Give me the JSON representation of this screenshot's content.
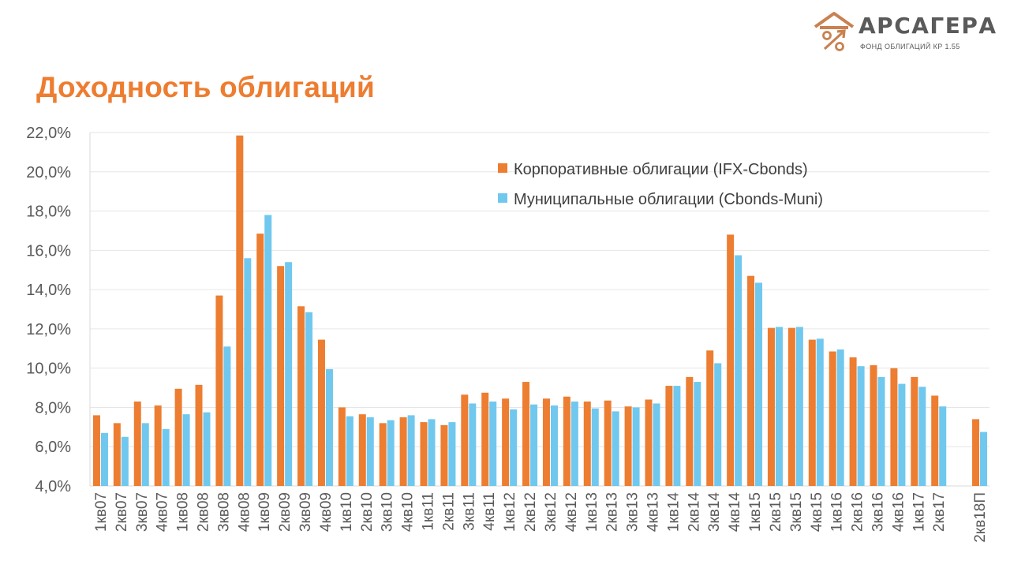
{
  "page": {
    "title": "Доходность облигаций"
  },
  "logo": {
    "name": "АРСАГЕРА",
    "subtitle": "ФОНД ОБЛИГАЦИЙ КР 1.55",
    "icon": "house-percent-logo-icon"
  },
  "colors": {
    "accent": "#ed7d31",
    "corporate": "#ed7d31",
    "municipal": "#70c8ee",
    "text": "#595959",
    "grid": "#e6e6e6"
  },
  "chart_data": {
    "type": "bar",
    "title": "",
    "xlabel": "",
    "ylabel": "",
    "ylim": [
      4,
      22
    ],
    "yticks": [
      4,
      6,
      8,
      10,
      12,
      14,
      16,
      18,
      20,
      22
    ],
    "ytick_labels": [
      "4,0%",
      "6,0%",
      "8,0%",
      "10,0%",
      "12,0%",
      "14,0%",
      "16,0%",
      "18,0%",
      "20,0%",
      "22,0%"
    ],
    "grid": true,
    "legend_position": "top-right",
    "categories": [
      "1кв07",
      "2кв07",
      "3кв07",
      "4кв07",
      "1кв08",
      "2кв08",
      "3кв08",
      "4кв08",
      "1кв09",
      "2кв09",
      "3кв09",
      "4кв09",
      "1кв10",
      "2кв10",
      "3кв10",
      "4кв10",
      "1кв11",
      "2кв11",
      "3кв11",
      "4кв11",
      "1кв12",
      "2кв12",
      "3кв12",
      "4кв12",
      "1кв13",
      "2кв13",
      "3кв13",
      "4кв13",
      "1кв14",
      "2кв14",
      "3кв14",
      "4кв14",
      "1кв15",
      "2кв15",
      "3кв15",
      "4кв15",
      "1кв16",
      "2кв16",
      "3кв16",
      "4кв16",
      "1кв17",
      "2кв17",
      "",
      "2кв18П"
    ],
    "series": [
      {
        "name": "Корпоративные облигации (IFX-Cbonds)",
        "values": [
          7.6,
          7.2,
          8.3,
          8.1,
          8.95,
          9.15,
          13.7,
          21.85,
          16.85,
          15.2,
          13.15,
          11.45,
          8.0,
          7.65,
          7.2,
          7.5,
          7.25,
          7.1,
          8.65,
          8.75,
          8.45,
          9.3,
          8.45,
          8.55,
          8.3,
          8.35,
          8.05,
          8.4,
          9.1,
          9.55,
          10.9,
          16.8,
          14.7,
          12.05,
          12.05,
          11.45,
          10.85,
          10.55,
          10.15,
          10.0,
          9.55,
          8.6,
          null,
          7.4
        ]
      },
      {
        "name": "Муниципальные облигации (Cbonds-Muni)",
        "values": [
          6.7,
          6.5,
          7.2,
          6.9,
          7.65,
          7.75,
          11.1,
          15.6,
          17.8,
          15.4,
          12.85,
          9.95,
          7.55,
          7.5,
          7.35,
          7.6,
          7.4,
          7.25,
          8.2,
          8.3,
          7.9,
          8.15,
          8.1,
          8.3,
          7.95,
          7.8,
          8.0,
          8.2,
          9.1,
          9.3,
          10.25,
          15.75,
          14.35,
          12.1,
          12.1,
          11.5,
          10.95,
          10.1,
          9.55,
          9.2,
          9.05,
          8.05,
          null,
          6.75
        ]
      }
    ]
  }
}
